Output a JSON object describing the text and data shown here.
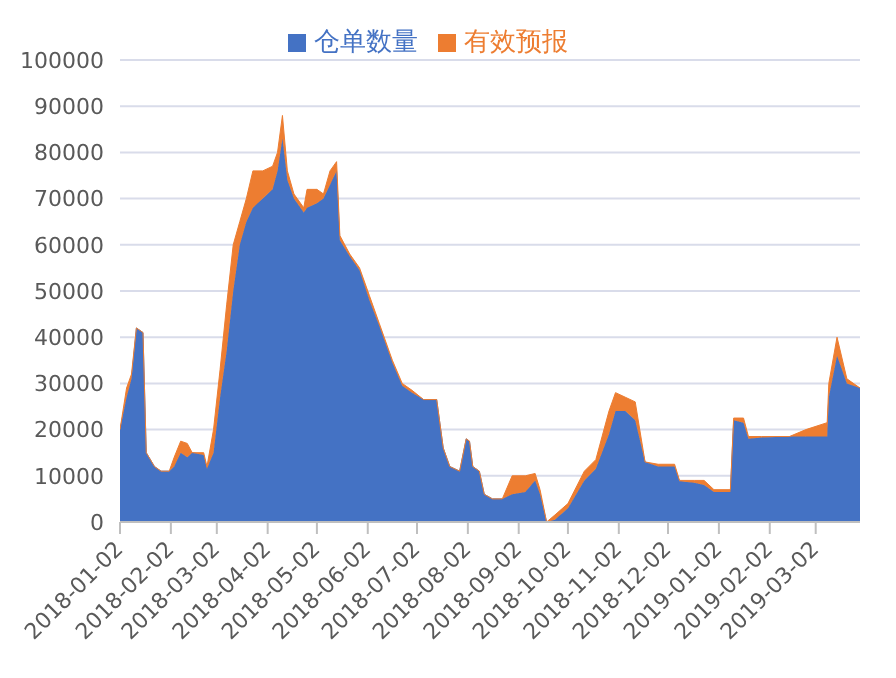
{
  "chart_data": {
    "type": "area",
    "stacked": true,
    "legend": "top",
    "grid": "y",
    "x": [
      "2018-01-02",
      "2018-01-06",
      "2018-01-09",
      "2018-01-12",
      "2018-01-16",
      "2018-01-18",
      "2018-01-23",
      "2018-01-27",
      "2018-02-01",
      "2018-02-04",
      "2018-02-08",
      "2018-02-12",
      "2018-02-15",
      "2018-02-22",
      "2018-02-24",
      "2018-02-28",
      "2018-03-04",
      "2018-03-08",
      "2018-03-12",
      "2018-03-16",
      "2018-03-20",
      "2018-03-24",
      "2018-03-30",
      "2018-04-05",
      "2018-04-08",
      "2018-04-11",
      "2018-04-14",
      "2018-04-18",
      "2018-04-24",
      "2018-04-26",
      "2018-05-02",
      "2018-05-06",
      "2018-05-10",
      "2018-05-14",
      "2018-05-16",
      "2018-05-22",
      "2018-05-28",
      "2018-06-03",
      "2018-06-09",
      "2018-06-17",
      "2018-06-23",
      "2018-06-29",
      "2018-07-06",
      "2018-07-14",
      "2018-07-18",
      "2018-07-22",
      "2018-07-28",
      "2018-08-01",
      "2018-08-03",
      "2018-08-05",
      "2018-08-09",
      "2018-08-12",
      "2018-08-17",
      "2018-08-23",
      "2018-08-29",
      "2018-09-06",
      "2018-09-12",
      "2018-09-15",
      "2018-09-19",
      "2018-09-24",
      "2018-10-02",
      "2018-10-12",
      "2018-10-19",
      "2018-10-27",
      "2018-10-31",
      "2018-11-06",
      "2018-11-12",
      "2018-11-18",
      "2018-11-26",
      "2018-12-06",
      "2018-12-09",
      "2018-12-18",
      "2018-12-24",
      "2018-12-30",
      "2019-01-09",
      "2019-01-11",
      "2019-01-17",
      "2019-01-20",
      "2019-01-28",
      "2019-02-14",
      "2019-02-24",
      "2019-03-09",
      "2019-03-10",
      "2019-03-15",
      "2019-03-21",
      "2019-03-29"
    ],
    "series": [
      {
        "name": "仓单数量",
        "color": "#4472c4",
        "values": [
          20000,
          27000,
          31000,
          42000,
          41000,
          15000,
          12000,
          11000,
          11000,
          12000,
          15000,
          14000,
          15000,
          14500,
          11500,
          15000,
          27000,
          37000,
          50000,
          60000,
          65000,
          68000,
          70000,
          72000,
          76000,
          83000,
          74000,
          70000,
          67000,
          68000,
          69000,
          70000,
          73000,
          76000,
          61000,
          57500,
          54500,
          48000,
          42500,
          34500,
          29500,
          28000,
          26500,
          26500,
          16000,
          12000,
          11000,
          18000,
          17500,
          12000,
          11000,
          6000,
          5000,
          5000,
          6000,
          6500,
          9000,
          6000,
          0,
          500,
          3000,
          9000,
          11500,
          19000,
          24000,
          24000,
          22000,
          13000,
          12000,
          12000,
          8800,
          8500,
          8000,
          6500,
          6500,
          22000,
          21500,
          18000,
          18300,
          18500,
          18500,
          18500,
          27000,
          36000,
          30000,
          29000
        ]
      },
      {
        "name": "有效预报",
        "color": "#ed7d31",
        "values": [
          0,
          2000,
          1000,
          0,
          0,
          0,
          0,
          0,
          0,
          2000,
          2500,
          3000,
          0,
          500,
          500,
          5000,
          6000,
          10000,
          10000,
          5000,
          5000,
          8000,
          6000,
          5000,
          4000,
          5000,
          2000,
          1000,
          1000,
          4000,
          3000,
          1000,
          3000,
          2000,
          1000,
          500,
          500,
          1000,
          500,
          500,
          500,
          500,
          0,
          0,
          0,
          0,
          0,
          0,
          0,
          0,
          0,
          0,
          0,
          0,
          4000,
          3500,
          1500,
          1000,
          0,
          1000,
          1000,
          2000,
          2000,
          5000,
          4000,
          3000,
          4000,
          0,
          500,
          500,
          200,
          500,
          1000,
          500,
          500,
          500,
          1000,
          500,
          200,
          0,
          1500,
          3000,
          3000,
          4000,
          1000,
          0
        ]
      }
    ],
    "xlim": [
      "2018-01-02",
      "2019-03-29"
    ],
    "xticks": [
      "2018-01-02",
      "2018-02-02",
      "2018-03-02",
      "2018-04-02",
      "2018-05-02",
      "2018-06-02",
      "2018-07-02",
      "2018-08-02",
      "2018-09-02",
      "2018-10-02",
      "2018-11-02",
      "2018-12-02",
      "2019-01-02",
      "2019-02-02",
      "2019-03-02"
    ],
    "ylim": [
      0,
      100000
    ],
    "yticks": [
      0,
      10000,
      20000,
      30000,
      40000,
      50000,
      60000,
      70000,
      80000,
      90000,
      100000
    ]
  }
}
